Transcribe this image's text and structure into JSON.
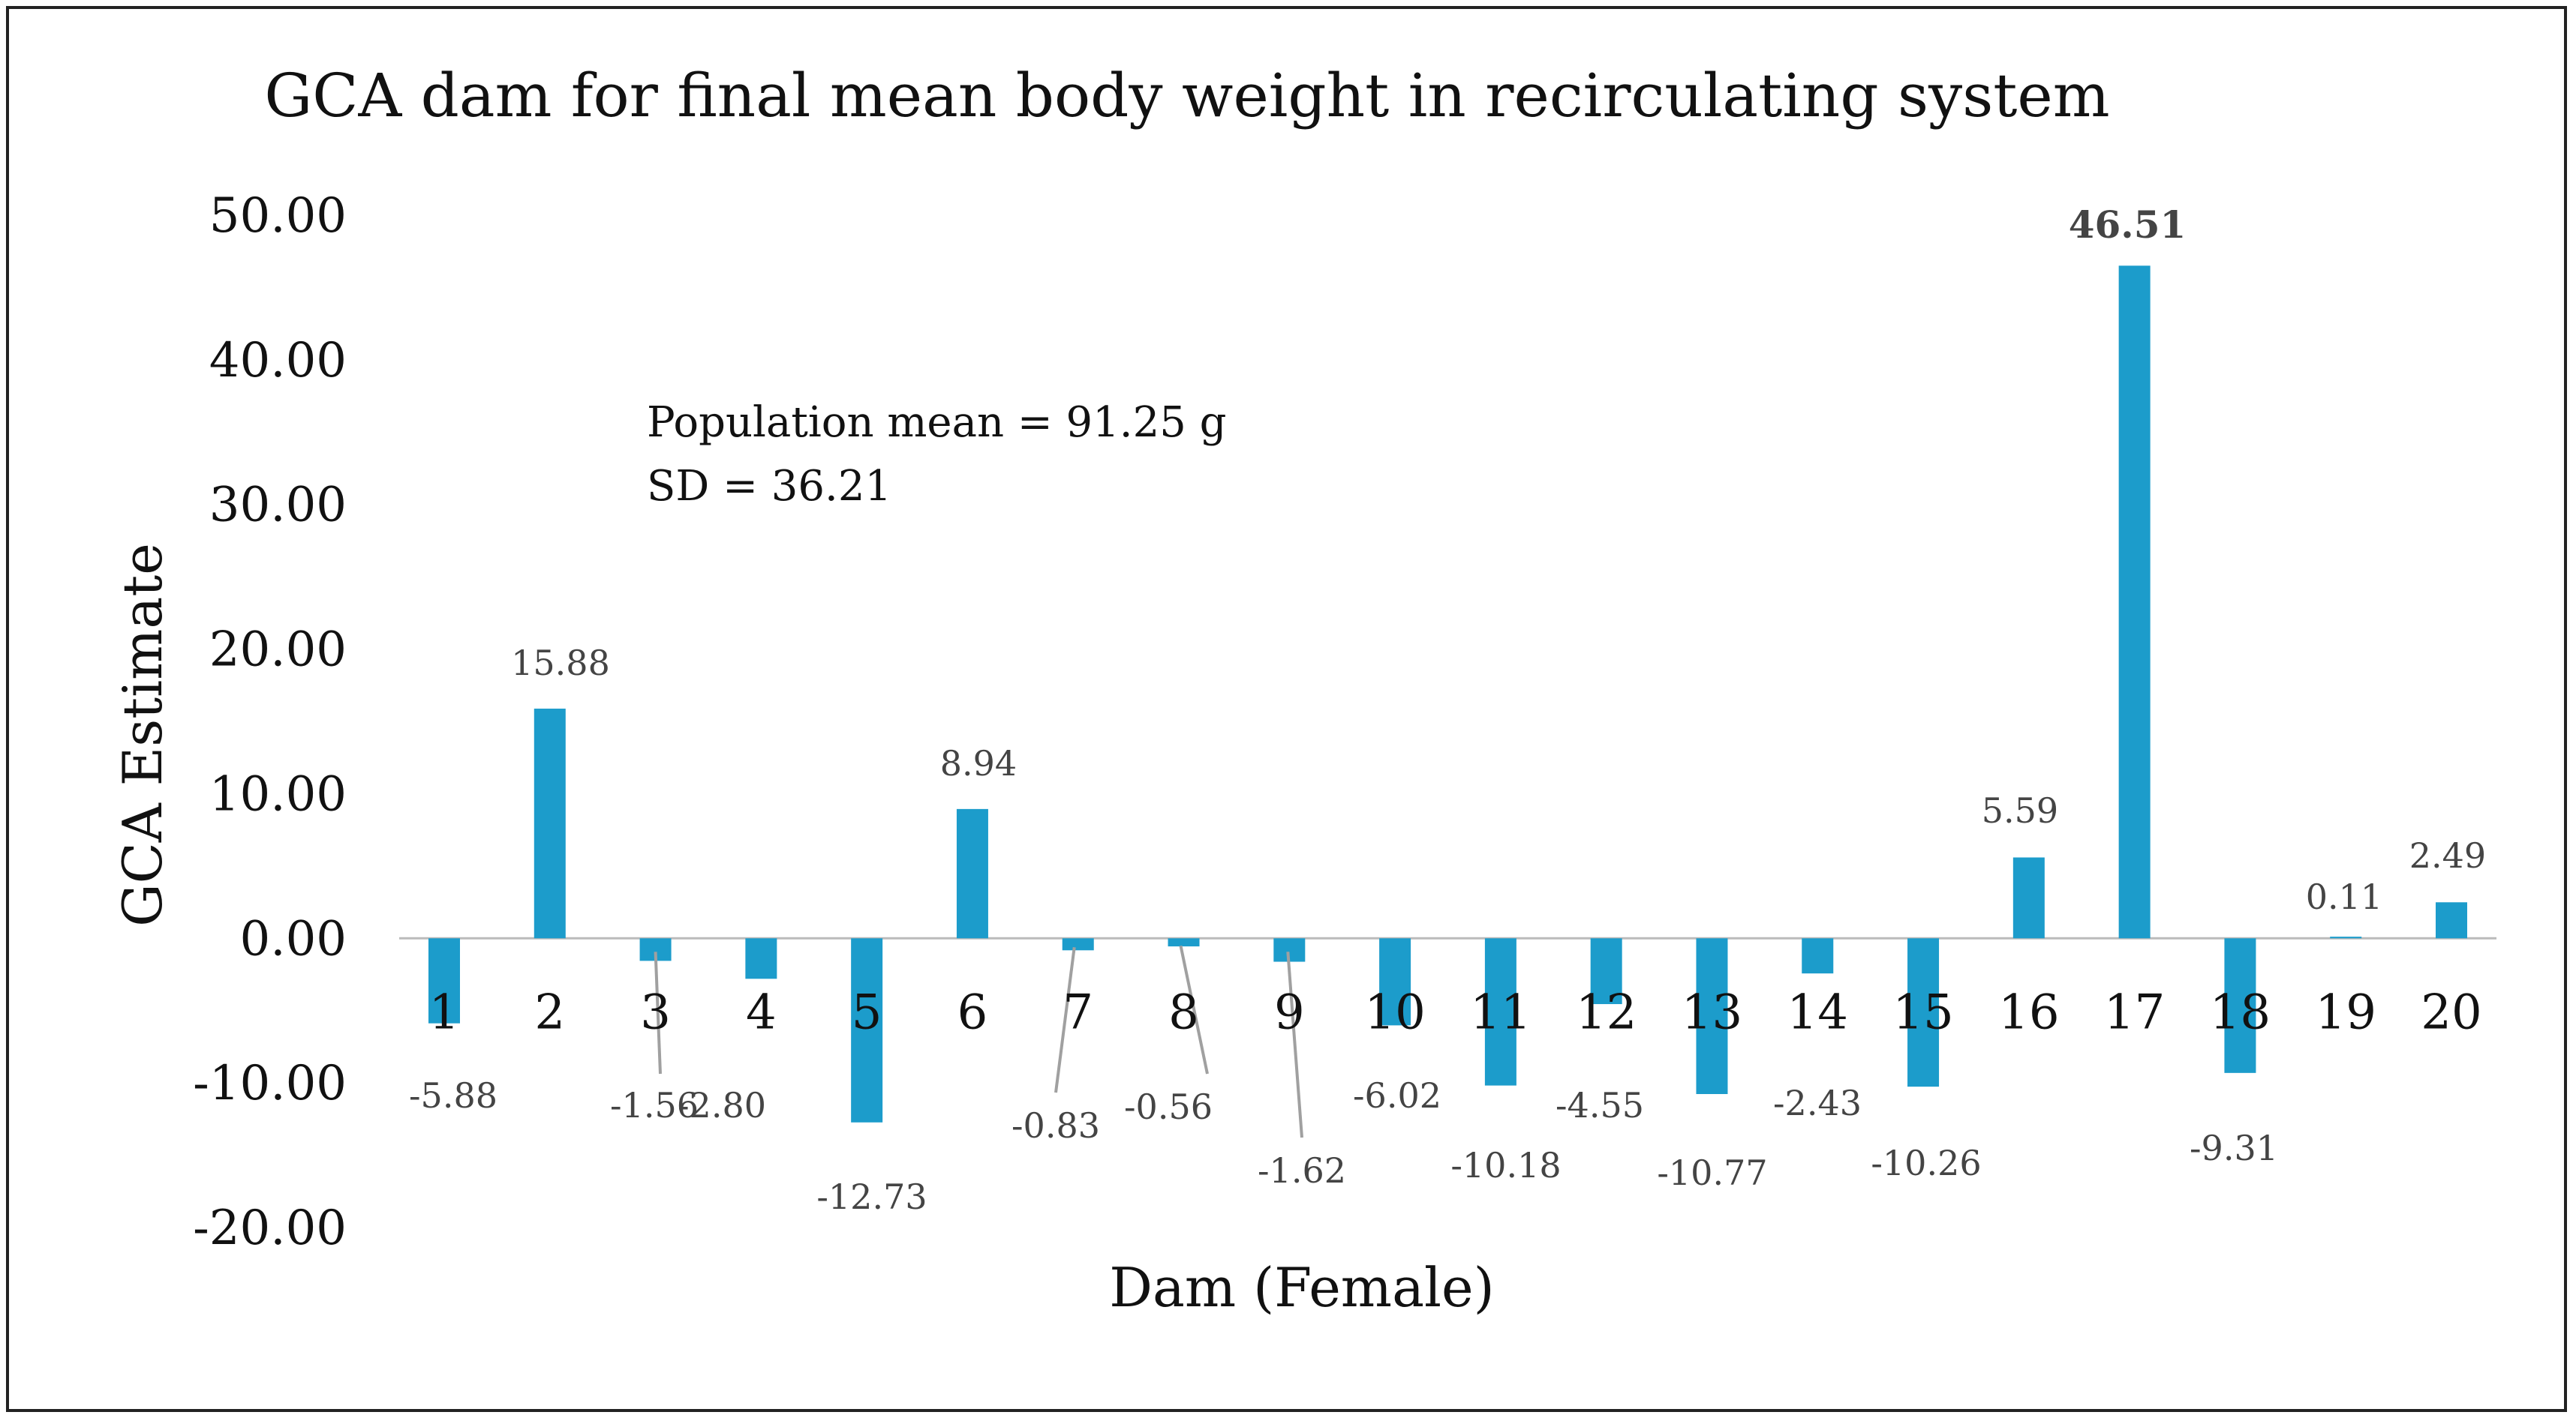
{
  "chart_data": {
    "type": "bar",
    "title": "GCA dam for final mean body weight in recirculating system",
    "xlabel": "Dam (Female)",
    "ylabel": "GCA Estimate",
    "ylim": [
      -20,
      50
    ],
    "yticks": [
      50,
      40,
      30,
      20,
      10,
      0,
      -10,
      -20
    ],
    "ytick_labels": [
      "50.00",
      "40.00",
      "30.00",
      "20.00",
      "10.00",
      "0.00",
      "-10.00",
      "-20.00"
    ],
    "categories": [
      "1",
      "2",
      "3",
      "4",
      "5",
      "6",
      "7",
      "8",
      "9",
      "10",
      "11",
      "12",
      "13",
      "14",
      "15",
      "16",
      "17",
      "18",
      "19",
      "20"
    ],
    "values": [
      -5.88,
      15.88,
      -1.56,
      -2.8,
      -12.73,
      8.94,
      -0.83,
      -0.56,
      -1.62,
      -6.02,
      -10.18,
      -4.55,
      -10.77,
      -2.43,
      -10.26,
      5.59,
      46.51,
      -9.31,
      0.11,
      2.49
    ],
    "labels": [
      "-5.88",
      "15.88",
      "-1.56",
      "-2.80",
      "-12.73",
      "8.94",
      "-0.83",
      "-0.56",
      "-1.62",
      "-6.02",
      "-10.18",
      "-4.55",
      "-10.77",
      "-2.43",
      "-10.26",
      "5.59",
      "46.51",
      "-9.31",
      "0.11",
      "2.49"
    ],
    "highlight_index": 16,
    "highlight_color": "#ee1111",
    "bar_color": "#1c9ccb",
    "grid": false,
    "annotations": [
      "Population mean = 91.25 g",
      "SD = 36.21"
    ]
  }
}
